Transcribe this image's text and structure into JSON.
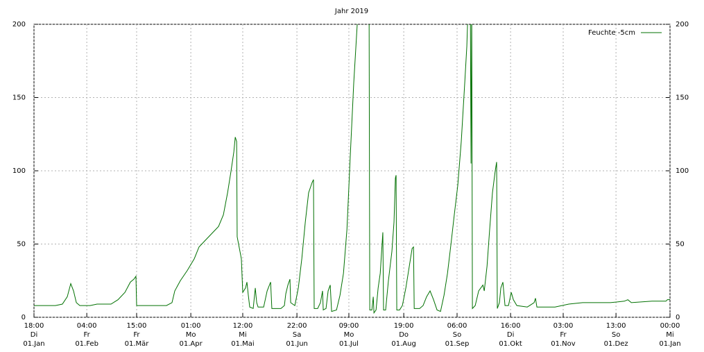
{
  "chart_data": {
    "type": "line",
    "title": "Jahr 2019",
    "xlim": [
      0,
      365
    ],
    "ylim": [
      0,
      200
    ],
    "yticks": [
      0,
      50,
      100,
      150,
      200
    ],
    "xticks": [
      {
        "value": 0,
        "label": [
          "18:00",
          "Di",
          "01.Jan"
        ]
      },
      {
        "value": 30.3,
        "label": [
          "04:00",
          "Fr",
          "01.Feb"
        ]
      },
      {
        "value": 58.9,
        "label": [
          "15:00",
          "Fr",
          "01.Mär"
        ]
      },
      {
        "value": 90,
        "label": [
          "01:00",
          "Mo",
          "01.Apr"
        ]
      },
      {
        "value": 119.8,
        "label": [
          "12:00",
          "Mi",
          "01.Mai"
        ]
      },
      {
        "value": 150.9,
        "label": [
          "22:00",
          "Sa",
          "01.Jun"
        ]
      },
      {
        "value": 180.7,
        "label": [
          "09:00",
          "Mo",
          "01.Jul"
        ]
      },
      {
        "value": 212.2,
        "label": [
          "19:00",
          "Do",
          "01.Aug"
        ]
      },
      {
        "value": 242.8,
        "label": [
          "06:00",
          "So",
          "01.Sep"
        ]
      },
      {
        "value": 273.5,
        "label": [
          "16:00",
          "Di",
          "01.Okt"
        ]
      },
      {
        "value": 303.7,
        "label": [
          "03:00",
          "Fr",
          "01.Nov"
        ]
      },
      {
        "value": 334,
        "label": [
          "13:00",
          "So",
          "01.Dez"
        ]
      },
      {
        "value": 365,
        "label": [
          "00:00",
          "Mi",
          "01.Jan"
        ]
      }
    ],
    "grid": true,
    "legend": "top-right",
    "x": [
      0,
      4.4,
      12.3,
      16.3,
      19.1,
      21.1,
      22.7,
      24.3,
      26.3,
      32.2,
      36.2,
      44.2,
      48.2,
      52.2,
      55.3,
      57.3,
      58.5,
      58.9,
      68.1,
      76.0,
      79.2,
      80.8,
      84.0,
      88.0,
      92.0,
      94.7,
      97.9,
      101.9,
      105.9,
      108.7,
      111.1,
      113.1,
      114.7,
      115.5,
      116.3,
      116.6,
      117.4,
      119.0,
      119.8,
      121.4,
      122.2,
      123.0,
      123.8,
      125.8,
      127.0,
      127.8,
      128.6,
      131.8,
      133.8,
      135.8,
      136.5,
      141.7,
      143.7,
      144.5,
      145.7,
      146.9,
      147.3,
      149.7,
      151.7,
      153.7,
      155.7,
      157.6,
      159.6,
      160.4,
      160.8,
      162.8,
      164.4,
      165.6,
      166.0,
      167.6,
      168.8,
      170.0,
      170.8,
      173.6,
      175.6,
      177.6,
      179.6,
      181.5,
      183.5,
      185.5,
      186.3,
      192.3,
      192.7,
      193.9,
      194.7,
      195.1,
      196.3,
      197.5,
      198.7,
      200.2,
      200.6,
      201.8,
      203.4,
      205.4,
      206.6,
      207.4,
      207.8,
      208.2,
      209.8,
      211.4,
      213.4,
      215.4,
      217.0,
      217.8,
      218.2,
      221.3,
      223.3,
      225.3,
      227.3,
      229.3,
      231.3,
      233.3,
      235.3,
      237.3,
      239.3,
      241.2,
      243.2,
      245.2,
      247.2,
      248.4,
      249.2,
      250.4,
      250.8,
      251.2,
      251.6,
      253.2,
      255.2,
      256.4,
      257.6,
      258.4,
      260.0,
      261.5,
      263.1,
      264.7,
      265.5,
      265.9,
      267.1,
      267.9,
      269.1,
      270.3,
      272.3,
      273.9,
      275.1,
      277.1,
      283.1,
      287.0,
      287.8,
      288.6,
      299.0,
      306.9,
      314.9,
      322.9,
      330.8,
      338.8,
      340.8,
      342.8,
      354.7,
      362.7,
      363.5,
      365
    ],
    "series": [
      {
        "name": "Feuchte -5cm",
        "color": "#007000",
        "values": [
          8,
          8,
          8,
          9,
          14,
          23,
          18,
          10,
          8,
          8,
          9,
          9,
          12,
          17,
          24,
          26,
          28,
          8,
          8,
          8,
          10,
          18,
          25,
          32,
          40,
          48,
          52,
          57,
          62,
          70,
          85,
          100,
          113,
          123,
          120,
          55,
          50,
          40,
          17,
          20,
          24,
          15,
          7,
          6,
          20,
          10,
          7,
          7,
          18,
          24,
          6,
          6,
          8,
          16,
          22,
          26,
          10,
          8,
          20,
          40,
          65,
          85,
          92,
          94,
          6,
          6,
          10,
          18,
          5,
          6,
          18,
          22,
          4,
          5,
          15,
          30,
          60,
          110,
          160,
          200,
          215,
          215,
          5,
          5,
          14,
          3,
          5,
          20,
          30,
          58,
          5,
          5,
          25,
          45,
          65,
          95,
          97,
          5,
          5,
          8,
          20,
          35,
          47,
          48,
          6,
          6,
          8,
          14,
          18,
          12,
          5,
          4,
          15,
          30,
          50,
          70,
          90,
          120,
          160,
          185,
          215,
          215,
          105,
          215,
          6,
          8,
          18,
          20,
          22,
          18,
          35,
          60,
          85,
          100,
          106,
          6,
          10,
          20,
          24,
          8,
          8,
          17,
          12,
          8,
          7,
          10,
          13,
          7,
          7,
          9,
          10,
          10,
          10,
          11,
          12,
          10,
          11,
          11,
          12,
          12
        ]
      }
    ]
  }
}
